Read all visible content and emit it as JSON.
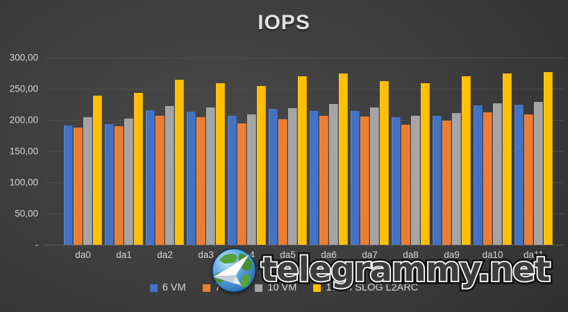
{
  "chart_data": {
    "type": "bar",
    "title": "IOPS",
    "categories": [
      "da0",
      "da1",
      "da2",
      "da3",
      "da4",
      "da5",
      "da6",
      "da7",
      "da8",
      "da9",
      "da10",
      "da11"
    ],
    "series": [
      {
        "name": "6 VM",
        "color": "#4472C4",
        "values": [
          191,
          193,
          216,
          213,
          207,
          218,
          214,
          214,
          204,
          207,
          223,
          224
        ]
      },
      {
        "name": "7 VM",
        "color": "#ED7D31",
        "values": [
          188,
          190,
          207,
          204,
          194,
          201,
          207,
          206,
          192,
          199,
          212,
          209
        ]
      },
      {
        "name": "10 VM",
        "color": "#A5A5A5",
        "values": [
          204,
          202,
          222,
          220,
          209,
          219,
          226,
          220,
          207,
          211,
          227,
          229
        ]
      },
      {
        "name": "10VM SLOG L2ARC",
        "color": "#FFC000",
        "values": [
          239,
          243,
          265,
          259,
          255,
          270,
          274,
          262,
          259,
          270,
          274,
          277
        ]
      }
    ],
    "ylim": [
      0,
      300
    ],
    "y_ticks": [
      {
        "value": 300,
        "label": "300,00"
      },
      {
        "value": 250,
        "label": "250,00"
      },
      {
        "value": 200,
        "label": "200,00"
      },
      {
        "value": 150,
        "label": "150,00"
      },
      {
        "value": 100,
        "label": "100,00"
      },
      {
        "value": 50,
        "label": "50,00"
      },
      {
        "value": 0,
        "label": "-"
      }
    ],
    "grid": true,
    "legend_position": "bottom"
  },
  "watermark": {
    "text": "telegrammy.net",
    "logo": "globe-paper-plane-icon"
  },
  "colors": {
    "background_center": "#484848",
    "background_edge": "#181818",
    "gridline": "#4c4c4c",
    "axis_text": "#d6d6d6",
    "title_text": "#e0e0e0"
  }
}
